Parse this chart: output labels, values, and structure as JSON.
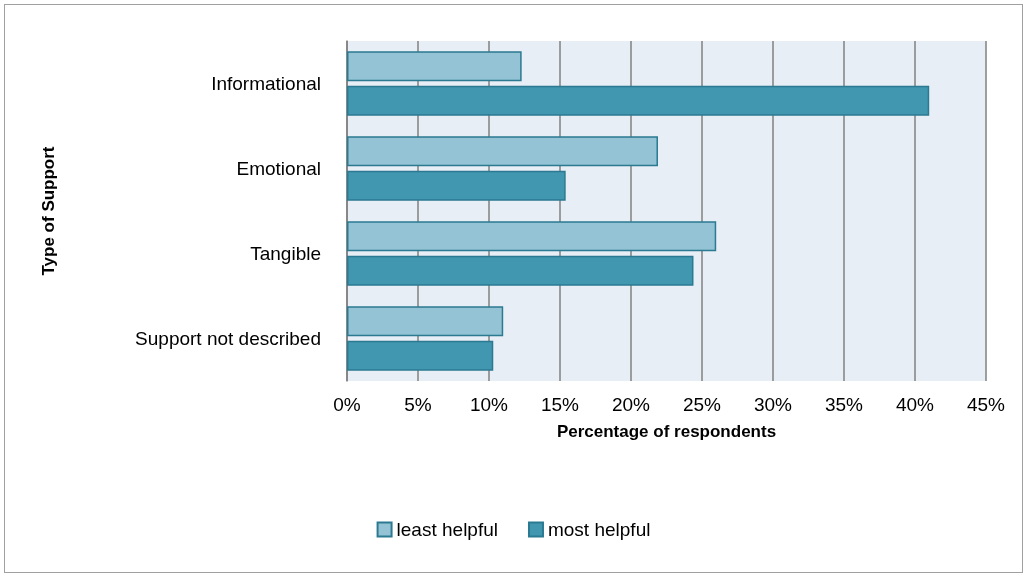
{
  "chart_data": {
    "type": "bar",
    "orientation": "horizontal",
    "ylabel": "Type of Support",
    "xlabel": "Percentage of respondents",
    "categories": [
      "Informational",
      "Emotional",
      "Tangible",
      "Support not described"
    ],
    "series": [
      {
        "name": "least helpful",
        "color": "#93c3d5",
        "values": [
          12.3,
          21.9,
          26.0,
          11.0
        ]
      },
      {
        "name": "most helpful",
        "color": "#4196b0",
        "values": [
          41.0,
          15.4,
          24.4,
          10.3
        ]
      }
    ],
    "xlim": [
      0,
      45
    ],
    "xticks": [
      {
        "value": 0,
        "label": "0%"
      },
      {
        "value": 5,
        "label": "5%"
      },
      {
        "value": 10,
        "label": "10%"
      },
      {
        "value": 15,
        "label": "15%"
      },
      {
        "value": 20,
        "label": "20%"
      },
      {
        "value": 25,
        "label": "25%"
      },
      {
        "value": 30,
        "label": "30%"
      },
      {
        "value": 35,
        "label": "35%"
      },
      {
        "value": 40,
        "label": "40%"
      },
      {
        "value": 45,
        "label": "45%"
      }
    ],
    "grid": "x",
    "legend": "bottom"
  }
}
